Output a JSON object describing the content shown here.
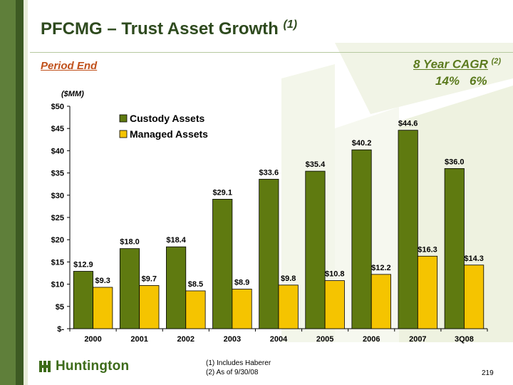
{
  "slide": {
    "title": "PFCMG – Trust Asset Growth",
    "title_note": "(1)",
    "period_label": "Period End",
    "cagr_label": "8 Year CAGR",
    "cagr_note": "(2)",
    "cagr_custody": "14%",
    "cagr_managed": "6%",
    "unit_label": "($MM)",
    "logo_text": "Huntington",
    "footnotes": [
      "(1)  Includes Haberer",
      "(2)  As of 9/30/08"
    ],
    "page_number": "219"
  },
  "colors": {
    "custody": "#5f7a10",
    "managed": "#f5c400",
    "title": "#2e4a1e",
    "accent": "#c0501a"
  },
  "chart_data": {
    "type": "bar",
    "categories": [
      "2000",
      "2001",
      "2002",
      "2003",
      "2004",
      "2005",
      "2006",
      "2007",
      "3Q08"
    ],
    "series": [
      {
        "name": "Custody Assets",
        "values": [
          12.9,
          18.0,
          18.4,
          29.1,
          33.6,
          35.4,
          40.2,
          44.6,
          36.0
        ],
        "labels": [
          "$12.9",
          "$18.0",
          "$18.4",
          "$29.1",
          "$33.6",
          "$35.4",
          "$40.2",
          "$44.6",
          "$36.0"
        ]
      },
      {
        "name": "Managed Assets",
        "values": [
          9.3,
          9.7,
          8.5,
          8.9,
          9.8,
          10.8,
          12.2,
          16.3,
          14.3
        ],
        "labels": [
          "$9.3",
          "$9.7",
          "$8.5",
          "$8.9",
          "$9.8",
          "$10.8",
          "$12.2",
          "$16.3",
          "$14.3"
        ]
      }
    ],
    "ylim": [
      0,
      50
    ],
    "yticks": [
      0,
      5,
      10,
      15,
      20,
      25,
      30,
      35,
      40,
      45,
      50
    ],
    "ytick_labels": [
      "$-",
      "$5",
      "$10",
      "$15",
      "$20",
      "$25",
      "$30",
      "$35",
      "$40",
      "$45",
      "$50"
    ],
    "grid": false,
    "legend_position": "top-left"
  }
}
